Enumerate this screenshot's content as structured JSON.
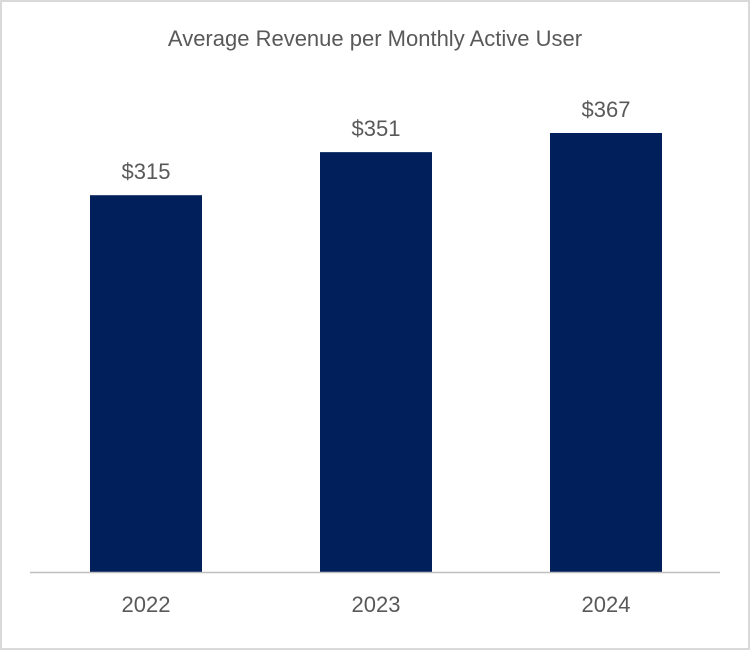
{
  "chart_data": {
    "type": "bar",
    "title": "Average Revenue per Monthly Active User",
    "categories": [
      "2022",
      "2023",
      "2024"
    ],
    "values": [
      315,
      351,
      367
    ],
    "data_labels": [
      "$315",
      "$351",
      "$367"
    ],
    "xlabel": "",
    "ylabel": "",
    "ylim": [
      0,
      367
    ],
    "grid": false,
    "legend": "none",
    "colors": {
      "bar": "#001f5b",
      "axis": "#bfbfbf",
      "text": "#595959",
      "border": "#d9d9d9"
    }
  }
}
